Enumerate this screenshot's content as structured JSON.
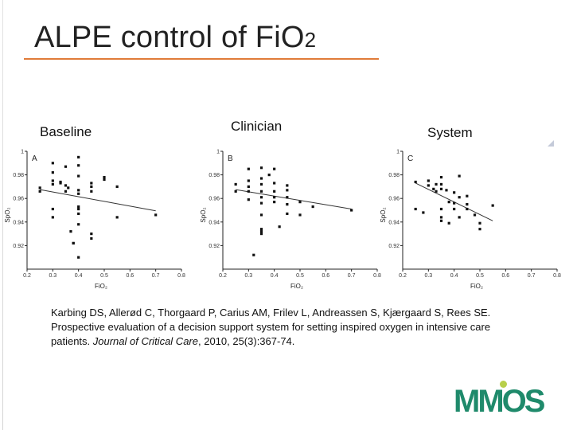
{
  "slide": {
    "title": "ALPE control of FiO",
    "title_sub": "2",
    "panel_labels": [
      "Baseline",
      "Clinician",
      "System"
    ],
    "citation": {
      "authors_lead": "Karbing DS, Allerød C, Thorgaard P, Carius AM, Frilev L, Andreassen S, Kjærgaard S, Rees SE. Prospective evaluation of a decision support system for setting inspired oxygen in intensive care patients. ",
      "journal": "Journal of Critical Care",
      "tail": ", 2010, 25(3):367-74."
    },
    "logo": "MMOS",
    "colors": {
      "title_rule": "#e07b39",
      "logo": "#1f8a6b",
      "logo_dot": "#b8cf4a"
    }
  },
  "chart_data": [
    {
      "type": "scatter",
      "panel_letter": "A",
      "xlabel": "FiO₂",
      "ylabel": "SpO₂",
      "xlim": [
        0.2,
        0.8
      ],
      "ylim": [
        0.9,
        1.0
      ],
      "xticks": [
        "0.2",
        "0.3",
        "0.4",
        "0.5",
        "0.6",
        "0.7",
        "0.8"
      ],
      "yticks": [
        "0.92",
        "0.94",
        "0.96",
        "0.98",
        "1"
      ],
      "x": [
        0.25,
        0.25,
        0.3,
        0.3,
        0.3,
        0.3,
        0.3,
        0.3,
        0.33,
        0.33,
        0.35,
        0.35,
        0.35,
        0.36,
        0.37,
        0.38,
        0.38,
        0.4,
        0.4,
        0.4,
        0.4,
        0.4,
        0.4,
        0.4,
        0.4,
        0.4,
        0.4,
        0.45,
        0.45,
        0.45,
        0.45,
        0.45,
        0.5,
        0.5,
        0.55,
        0.55,
        0.7
      ],
      "y": [
        0.969,
        0.966,
        0.99,
        0.982,
        0.975,
        0.972,
        0.951,
        0.944,
        0.973,
        0.974,
        0.987,
        0.971,
        0.966,
        0.969,
        0.932,
        0.922,
        0.922,
        0.995,
        0.988,
        0.979,
        0.967,
        0.964,
        0.953,
        0.951,
        0.947,
        0.938,
        0.91,
        0.973,
        0.97,
        0.966,
        0.93,
        0.926,
        0.978,
        0.976,
        0.97,
        0.944,
        0.946
      ],
      "trend": {
        "x": [
          0.25,
          0.7
        ],
        "y": [
          0.9675,
          0.9495
        ]
      }
    },
    {
      "type": "scatter",
      "panel_letter": "B",
      "xlabel": "FiO₂",
      "ylabel": "SpO₂",
      "xlim": [
        0.2,
        0.8
      ],
      "ylim": [
        0.9,
        1.0
      ],
      "xticks": [
        "0.2",
        "0.3",
        "0.4",
        "0.5",
        "0.6",
        "0.7",
        "0.8"
      ],
      "yticks": [
        "0.92",
        "0.94",
        "0.96",
        "0.98",
        "1"
      ],
      "x": [
        0.25,
        0.25,
        0.3,
        0.3,
        0.3,
        0.3,
        0.3,
        0.32,
        0.35,
        0.35,
        0.35,
        0.35,
        0.35,
        0.35,
        0.35,
        0.35,
        0.35,
        0.35,
        0.38,
        0.4,
        0.4,
        0.4,
        0.4,
        0.4,
        0.42,
        0.45,
        0.45,
        0.45,
        0.45,
        0.45,
        0.5,
        0.5,
        0.55,
        0.7
      ],
      "y": [
        0.972,
        0.966,
        0.985,
        0.975,
        0.97,
        0.966,
        0.959,
        0.912,
        0.986,
        0.977,
        0.972,
        0.966,
        0.961,
        0.956,
        0.946,
        0.934,
        0.932,
        0.93,
        0.98,
        0.985,
        0.973,
        0.966,
        0.961,
        0.957,
        0.936,
        0.971,
        0.967,
        0.961,
        0.955,
        0.947,
        0.957,
        0.946,
        0.953,
        0.95
      ],
      "trend": {
        "x": [
          0.25,
          0.7
        ],
        "y": [
          0.9675,
          0.951
        ]
      }
    },
    {
      "type": "scatter",
      "panel_letter": "C",
      "xlabel": "FiO₂",
      "ylabel": "SpO₂",
      "xlim": [
        0.2,
        0.8
      ],
      "ylim": [
        0.9,
        1.0
      ],
      "xticks": [
        "0.2",
        "0.3",
        "0.4",
        "0.5",
        "0.6",
        "0.7",
        "0.8"
      ],
      "yticks": [
        "0.92",
        "0.94",
        "0.96",
        "0.98",
        "1"
      ],
      "x": [
        0.25,
        0.25,
        0.28,
        0.3,
        0.3,
        0.32,
        0.33,
        0.33,
        0.35,
        0.35,
        0.35,
        0.35,
        0.35,
        0.35,
        0.37,
        0.38,
        0.38,
        0.4,
        0.4,
        0.4,
        0.42,
        0.42,
        0.42,
        0.45,
        0.45,
        0.45,
        0.48,
        0.5,
        0.5,
        0.55
      ],
      "y": [
        0.974,
        0.951,
        0.948,
        0.975,
        0.971,
        0.968,
        0.972,
        0.966,
        0.978,
        0.972,
        0.968,
        0.951,
        0.944,
        0.941,
        0.967,
        0.957,
        0.939,
        0.965,
        0.956,
        0.951,
        0.979,
        0.961,
        0.944,
        0.962,
        0.955,
        0.951,
        0.946,
        0.939,
        0.934,
        0.954
      ],
      "trend": {
        "x": [
          0.25,
          0.55
        ],
        "y": [
          0.973,
          0.941
        ]
      }
    }
  ]
}
